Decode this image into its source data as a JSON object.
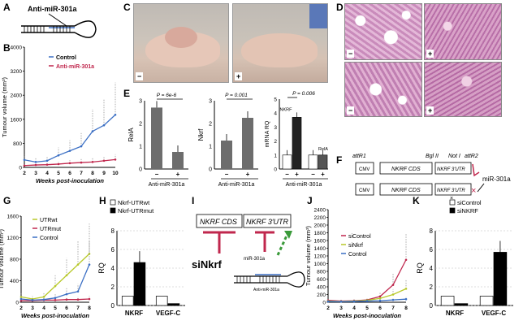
{
  "panel_labels": {
    "A": "A",
    "B": "B",
    "C": "C",
    "D": "D",
    "E": "E",
    "F": "F",
    "G": "G",
    "H": "H",
    "I": "I",
    "J": "J",
    "K": "K"
  },
  "panelA": {
    "label": "Anti-miR-301a"
  },
  "panelC": {
    "minus": "−",
    "plus": "+"
  },
  "panelD": {
    "signs": [
      "−",
      "+",
      "−",
      "+"
    ]
  },
  "panelF": {
    "attR1": "attR1",
    "bgl": "Bgl II",
    "not": "Not I",
    "attR2": "attR2",
    "cmv": "CMV",
    "cds": "NKRF CDS",
    "utr": "NKRF 3′UTR",
    "mir": "miR-301a",
    "x": "×"
  },
  "panelI": {
    "cds": "NKRF CDS",
    "utr": "NKRF 3′UTR",
    "si": "siNkrf",
    "mir": "miR-301a",
    "anti": "Anti-miR-301a"
  },
  "chart_data": [
    {
      "panel": "B",
      "type": "line",
      "ylabel": "Tumour volume (mm³)",
      "xlabel": "Weeks post-inoculation",
      "x": [
        2,
        3,
        4,
        5,
        6,
        7,
        8,
        9,
        10
      ],
      "xticks": [
        "2",
        "3",
        "4",
        "5",
        "6",
        "7",
        "8",
        "9",
        "10"
      ],
      "yticks": [
        "0",
        "800",
        "1600",
        "2400",
        "3200",
        "4000"
      ],
      "ylim": [
        0,
        4000
      ],
      "series": [
        {
          "name": "Control",
          "color": "#3b6fc4",
          "values": [
            250,
            180,
            220,
            400,
            550,
            700,
            1200,
            1400,
            1750
          ]
        },
        {
          "name": "Anti-miR-301a",
          "color": "#c0274d",
          "values": [
            60,
            80,
            90,
            110,
            140,
            160,
            180,
            220,
            260
          ]
        }
      ]
    },
    {
      "panel": "E1",
      "type": "bar",
      "ylabel": "RelA",
      "xlabel": "Anti-miR-301a",
      "categories": [
        "−",
        "+"
      ],
      "values": [
        2.7,
        0.75
      ],
      "ylim": [
        0,
        3
      ],
      "yticks": [
        "0",
        "1",
        "2",
        "3"
      ],
      "pvalue": "P = 6e-6"
    },
    {
      "panel": "E2",
      "type": "bar",
      "ylabel": "Nkrf",
      "xlabel": "Anti-miR-301a",
      "categories": [
        "−",
        "+"
      ],
      "values": [
        1.25,
        2.25
      ],
      "ylim": [
        0,
        3
      ],
      "yticks": [
        "0",
        "1",
        "2",
        "3"
      ],
      "pvalue": "P = 0.001"
    },
    {
      "panel": "E3",
      "type": "bar",
      "ylabel": "mRNA RQ",
      "xlabel": "Anti-miR-301a",
      "categories": [
        "−",
        "+",
        "−",
        "+"
      ],
      "groups": [
        "NKRF",
        "RelA"
      ],
      "values": [
        1,
        3.7,
        1,
        1
      ],
      "ylim": [
        0,
        5
      ],
      "yticks": [
        "0",
        "1",
        "2",
        "3",
        "4",
        "5"
      ],
      "pvalue": "P = 0.006"
    },
    {
      "panel": "G",
      "type": "line",
      "ylabel": "Tumour volume (mm³)",
      "xlabel": "Weeks post-inoculation",
      "x": [
        2,
        3,
        4,
        5,
        6,
        7,
        8
      ],
      "xticks": [
        "2",
        "3",
        "4",
        "5",
        "6",
        "7",
        "8"
      ],
      "yticks": [
        "0",
        "400",
        "800",
        "1200",
        "1600"
      ],
      "ylim": [
        0,
        1600
      ],
      "series": [
        {
          "name": "UTRwt",
          "color": "#b8c92a",
          "values": [
            100,
            60,
            100,
            300,
            500,
            700,
            900
          ]
        },
        {
          "name": "UTRmut",
          "color": "#c0274d",
          "values": [
            30,
            30,
            40,
            40,
            50,
            50,
            60
          ]
        },
        {
          "name": "Control",
          "color": "#3b6fc4",
          "values": [
            60,
            40,
            50,
            80,
            150,
            200,
            700
          ]
        }
      ]
    },
    {
      "panel": "H",
      "type": "bar",
      "ylabel": "RQ",
      "categories": [
        "NKRF",
        "VEGF-C"
      ],
      "yticks": [
        "0",
        "2",
        "4",
        "6",
        "8"
      ],
      "ylim": [
        0,
        8
      ],
      "series": [
        {
          "name": "Nkrf-UTRwt",
          "color": "#ffffff",
          "values": [
            1,
            1
          ]
        },
        {
          "name": "Nkrf-UTRmut",
          "color": "#000000",
          "values": [
            4.6,
            0.2
          ]
        }
      ]
    },
    {
      "panel": "J",
      "type": "line",
      "ylabel": "Tumour volume (mm³)",
      "xlabel": "Weeks post-inoculation",
      "x": [
        2,
        3,
        4,
        5,
        6,
        7,
        8
      ],
      "xticks": [
        "2",
        "3",
        "4",
        "5",
        "6",
        "7",
        "8"
      ],
      "yticks": [
        "0",
        "200",
        "400",
        "600",
        "800",
        "1000",
        "1200",
        "1400",
        "1600",
        "1800",
        "2000",
        "2200",
        "2400"
      ],
      "ylim": [
        0,
        2400
      ],
      "series": [
        {
          "name": "siControl",
          "color": "#c0274d",
          "values": [
            50,
            30,
            40,
            60,
            150,
            450,
            1100
          ]
        },
        {
          "name": "siNkrf",
          "color": "#b8c92a",
          "values": [
            30,
            20,
            30,
            50,
            100,
            200,
            350
          ]
        },
        {
          "name": "Control",
          "color": "#3b6fc4",
          "values": [
            20,
            15,
            20,
            30,
            40,
            60,
            80
          ]
        }
      ]
    },
    {
      "panel": "K",
      "type": "bar",
      "ylabel": "RQ",
      "categories": [
        "NKRF",
        "VEGF-C"
      ],
      "yticks": [
        "0",
        "2",
        "4",
        "6",
        "8"
      ],
      "ylim": [
        0,
        8
      ],
      "series": [
        {
          "name": "siControl",
          "color": "#ffffff",
          "values": [
            1,
            1
          ]
        },
        {
          "name": "siNKRF",
          "color": "#000000",
          "values": [
            0.2,
            5.7
          ]
        }
      ]
    }
  ]
}
